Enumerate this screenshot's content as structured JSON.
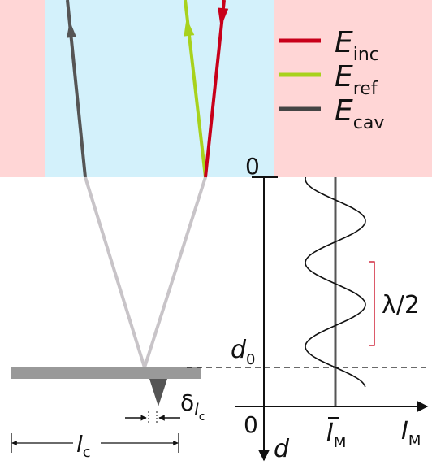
{
  "legend": [
    {
      "symbol": "E",
      "subscript": "inc"
    },
    {
      "symbol": "E",
      "subscript": "ref"
    },
    {
      "symbol": "E",
      "subscript": "cav"
    }
  ],
  "axes": {
    "origin_top": "0",
    "origin_bottom": "0",
    "depth_label": "d",
    "intensity_label": {
      "symbol": "I",
      "subscript": "M"
    },
    "mean_intensity": {
      "symbol": "I",
      "subscript": "M"
    }
  },
  "annotations": {
    "d0": {
      "symbol": "d",
      "subscript": "0"
    },
    "half_wavelength": "λ/2",
    "deflection": {
      "symbol": "δ",
      "subscript": "l",
      "subsubscript": "c"
    },
    "length": {
      "symbol": "l",
      "subscript": "c"
    }
  }
}
